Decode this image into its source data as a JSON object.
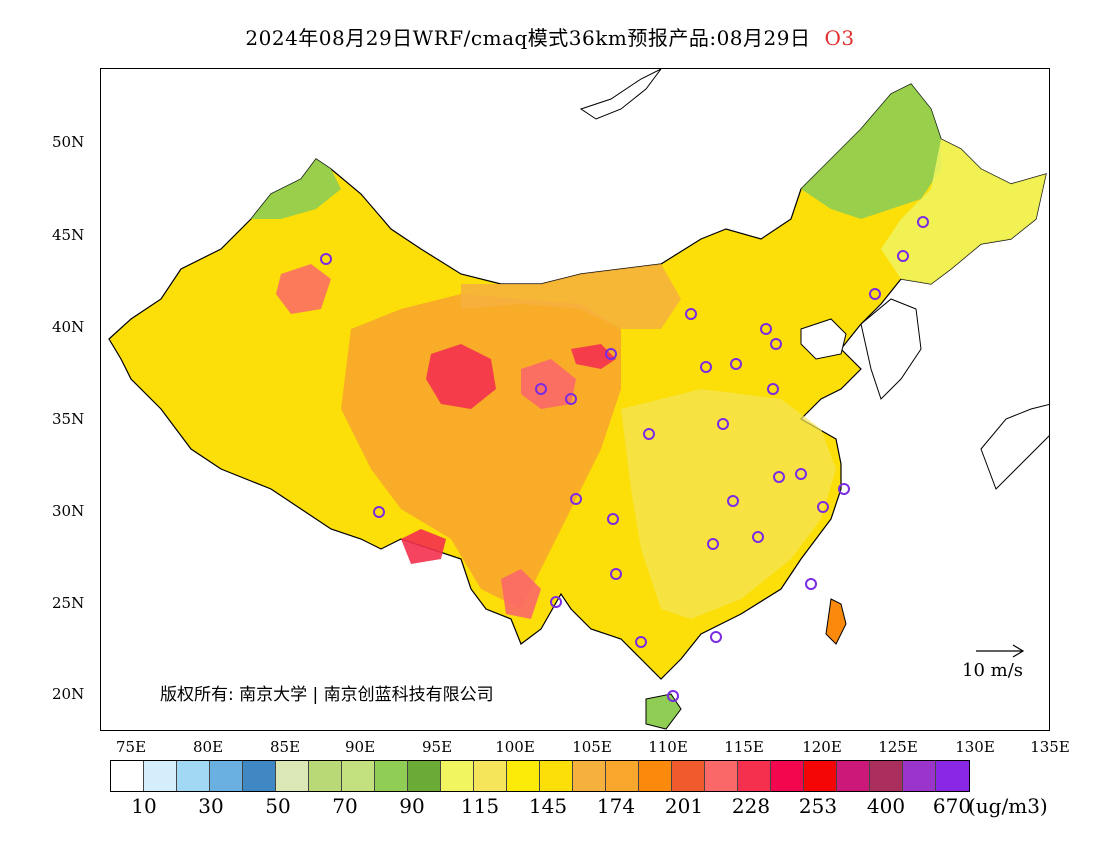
{
  "header": {
    "title": "2024年08月29日WRF/cmaq模式36km预报产品:08月29日",
    "species": "O3",
    "species_color": "#e03030"
  },
  "map": {
    "lat_ticks": [
      "50N",
      "45N",
      "40N",
      "35N",
      "30N",
      "25N",
      "20N"
    ],
    "lon_ticks": [
      "75E",
      "80E",
      "85E",
      "90E",
      "95E",
      "100E",
      "105E",
      "110E",
      "115E",
      "120E",
      "125E",
      "130E",
      "135E"
    ],
    "copyright": "版权所有: 南京大学 | 南京创蓝科技有限公司",
    "wind_reference": "10 m/s"
  },
  "legend": {
    "colors": [
      "#ffffff",
      "#d4eefc",
      "#a2d8f4",
      "#6ab0e0",
      "#3f88c4",
      "#dbe7b4",
      "#b9d977",
      "#c3e07e",
      "#8fcd54",
      "#6aaa36",
      "#f0f560",
      "#f4e55a",
      "#fcea08",
      "#fcde08",
      "#f6b03e",
      "#f8a62c",
      "#fb8a0c",
      "#f05a2c",
      "#fa6868",
      "#f4304e",
      "#f2064e",
      "#f40606",
      "#cc1878",
      "#aa2e5e",
      "#9a34ca",
      "#8a26e6"
    ],
    "labels": [
      "10",
      "30",
      "50",
      "70",
      "90",
      "115",
      "145",
      "174",
      "201",
      "228",
      "253",
      "400",
      "670"
    ],
    "unit": "(ug/m3)"
  }
}
